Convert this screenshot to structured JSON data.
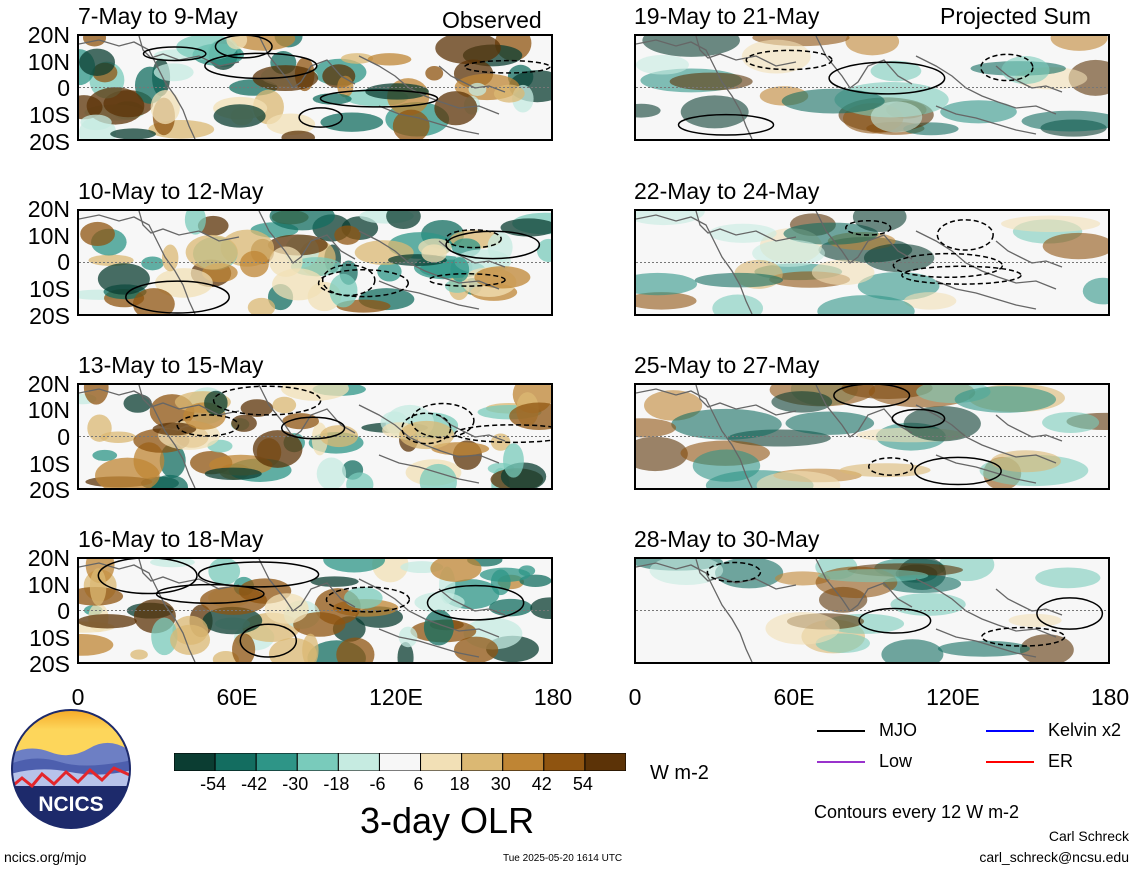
{
  "header": {
    "left": "Observed",
    "right": "Projected Sum"
  },
  "panels_observed": [
    {
      "title": "7-May to 9-May"
    },
    {
      "title": "10-May to 12-May"
    },
    {
      "title": "13-May to 15-May"
    },
    {
      "title": "16-May to 18-May"
    }
  ],
  "panels_projected": [
    {
      "title": "19-May to 21-May"
    },
    {
      "title": "22-May to 24-May"
    },
    {
      "title": "25-May to 27-May"
    },
    {
      "title": "28-May to 30-May"
    }
  ],
  "lat_ticks": [
    "20N",
    "10N",
    "0",
    "10S",
    "20S"
  ],
  "lon_ticks": [
    "0",
    "60E",
    "120E",
    "180"
  ],
  "colorbar": {
    "unit": "W m-2",
    "title": "3-day OLR",
    "labels": [
      "-54",
      "-42",
      "-30",
      "-18",
      "-6",
      "6",
      "18",
      "30",
      "42",
      "54"
    ],
    "colors": [
      "#0b3d32",
      "#136d60",
      "#2e9587",
      "#79cbbb",
      "#c6ebe1",
      "#f7f7f7",
      "#f2e0b6",
      "#dbb873",
      "#bf8534",
      "#8f5410",
      "#5c3307"
    ]
  },
  "legend": {
    "items": [
      {
        "label": "MJO",
        "color": "#000000"
      },
      {
        "label": "Kelvin x2",
        "color": "#0000ff"
      },
      {
        "label": "Low",
        "color": "#9933cc"
      },
      {
        "label": "ER",
        "color": "#ff0000"
      }
    ],
    "note": "Contours every 12 W m-2"
  },
  "footer": {
    "logo_text": "NCICS",
    "url": "ncics.org/mjo",
    "timestamp": "Tue 2025-05-20 1614 UTC",
    "author": "Carl Schreck",
    "email": "carl_schreck@ncsu.edu"
  },
  "chart_data": {
    "type": "heatmap",
    "variable": "3-day OLR",
    "unit": "W m-2",
    "x_axis": {
      "ticks": [
        "0",
        "60E",
        "120E",
        "180"
      ],
      "range": [
        0,
        180
      ]
    },
    "y_axis": {
      "ticks": [
        "20N",
        "10N",
        "0",
        "10S",
        "20S"
      ],
      "range": [
        -20,
        20
      ]
    },
    "color_levels": [
      -54,
      -42,
      -30,
      -18,
      -6,
      6,
      18,
      30,
      42,
      54
    ],
    "contour_interval": 12,
    "panels": [
      "7-May to 9-May",
      "10-May to 12-May",
      "13-May to 15-May",
      "16-May to 18-May",
      "19-May to 21-May",
      "22-May to 24-May",
      "25-May to 27-May",
      "28-May to 30-May"
    ]
  }
}
